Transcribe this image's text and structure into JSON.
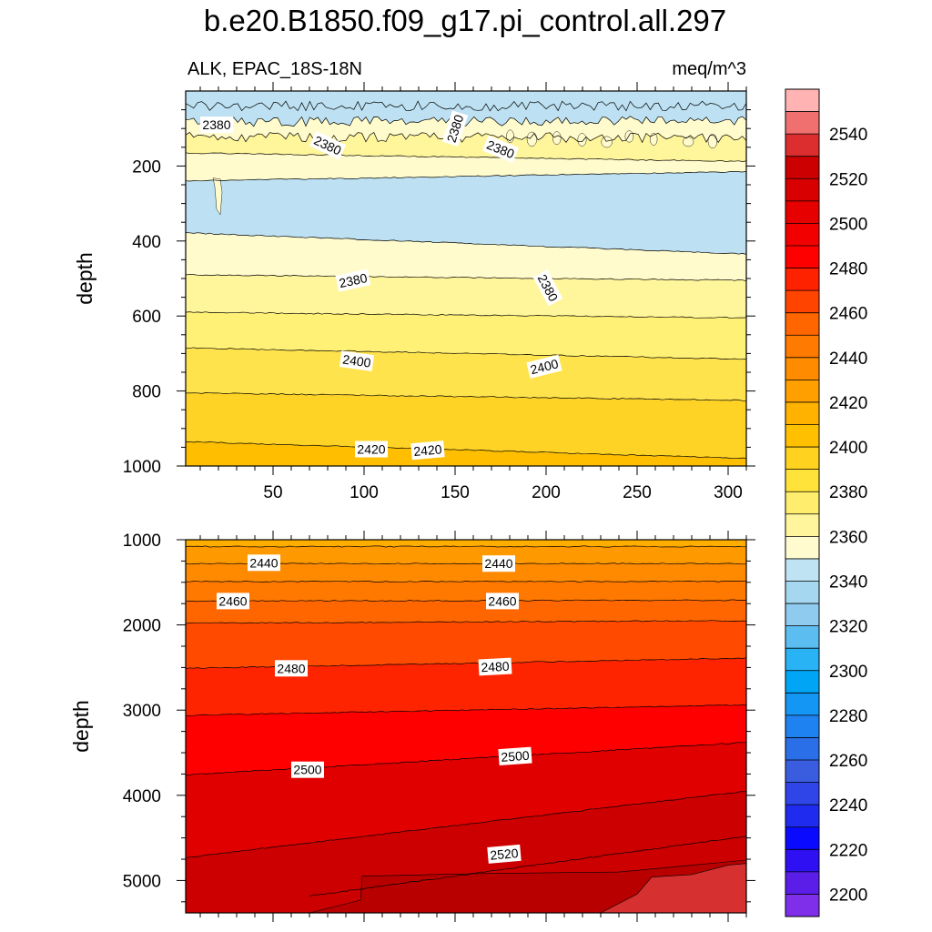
{
  "title": "b.e20.B1850.f09_g17.pi_control.all.297",
  "left_subtitle": "ALK, EPAC_18S-18N",
  "right_subtitle": "meq/m^3",
  "chart_data": [
    {
      "type": "heatmap",
      "panel": "upper",
      "ylabel": "depth",
      "xlabel": "",
      "xlim": [
        2,
        310
      ],
      "ylim": [
        1000,
        0
      ],
      "x_ticks": [
        50,
        100,
        150,
        200,
        250,
        300
      ],
      "y_ticks": [
        200,
        400,
        600,
        800,
        1000
      ],
      "contour_lines": [
        {
          "depth_left": 40,
          "depth_right": 40,
          "wavy": true
        },
        {
          "depth_left": 82,
          "depth_right": 78,
          "wavy": true
        },
        {
          "depth_left": 122,
          "depth_right": 125,
          "wavy": true
        },
        {
          "depth_left": 165,
          "depth_right": 188,
          "wavy": false
        },
        {
          "depth_left": 240,
          "depth_right": 215,
          "wavy": false
        },
        {
          "depth_left": 378,
          "depth_right": 435,
          "wavy": false
        },
        {
          "depth_left": 490,
          "depth_right": 505,
          "wavy": false
        },
        {
          "depth_left": 590,
          "depth_right": 605,
          "wavy": false
        },
        {
          "depth_left": 685,
          "depth_right": 715,
          "wavy": false
        },
        {
          "depth_left": 805,
          "depth_right": 825,
          "wavy": false
        },
        {
          "depth_left": 935,
          "depth_right": 980,
          "wavy": false
        }
      ],
      "bands": [
        {
          "color": "#bde1f2",
          "top": "edge",
          "bottom": 1
        },
        {
          "color": "#fffbcc",
          "top": 1,
          "bottom": 2
        },
        {
          "color": "#fff59a",
          "top": 2,
          "bottom": 3
        },
        {
          "color": "#fffbcc",
          "top": 3,
          "bottom": 4
        },
        {
          "color": "#bde1f2",
          "top": 4,
          "bottom": 5
        },
        {
          "color": "#fffbcc",
          "top": 5,
          "bottom": 6
        },
        {
          "color": "#fff59a",
          "top": 6,
          "bottom": 7
        },
        {
          "color": "#fff176",
          "top": 7,
          "bottom": 8
        },
        {
          "color": "#ffe34d",
          "top": 8,
          "bottom": 9
        },
        {
          "color": "#ffd326",
          "top": 9,
          "bottom": 10
        },
        {
          "color": "#ffbf00",
          "top": 10,
          "bottom": "edge"
        }
      ],
      "contour_labels": [
        {
          "text": "2380",
          "x": 19,
          "depth": 90,
          "angle": 0
        },
        {
          "text": "2380",
          "x": 80,
          "depth": 145,
          "angle": 25
        },
        {
          "text": "2380",
          "x": 150,
          "depth": 100,
          "angle": -72
        },
        {
          "text": "2380",
          "x": 175,
          "depth": 155,
          "angle": 22
        },
        {
          "text": "2380",
          "x": 94,
          "depth": 505,
          "angle": -12
        },
        {
          "text": "2380",
          "x": 201,
          "depth": 525,
          "angle": 62
        },
        {
          "text": "2400",
          "x": 96,
          "depth": 720,
          "angle": 8
        },
        {
          "text": "2400",
          "x": 199,
          "depth": 735,
          "angle": -14
        },
        {
          "text": "2420",
          "x": 104,
          "depth": 955,
          "angle": 0
        },
        {
          "text": "2420",
          "x": 135,
          "depth": 958,
          "angle": -5
        }
      ]
    },
    {
      "type": "heatmap",
      "panel": "lower",
      "ylabel": "depth",
      "xlabel": "",
      "xlim": [
        2,
        310
      ],
      "ylim": [
        5380,
        1000
      ],
      "y_ticks": [
        1000,
        2000,
        3000,
        4000,
        5000
      ],
      "contour_lines": [
        {
          "depth_left": 1080,
          "depth_right": 1080
        },
        {
          "depth_left": 1280,
          "depth_right": 1280
        },
        {
          "depth_left": 1490,
          "depth_right": 1490
        },
        {
          "depth_left": 1720,
          "depth_right": 1710
        },
        {
          "depth_left": 1980,
          "depth_right": 1950
        },
        {
          "depth_left": 2510,
          "depth_right": 2390
        },
        {
          "depth_left": 3060,
          "depth_right": 2940
        },
        {
          "depth_left": 3760,
          "depth_right": 3380
        },
        {
          "depth_left": 4730,
          "depth_right": 3950
        },
        {
          "depth_left": 5380,
          "depth_right": 4480,
          "start_x": 70
        }
      ],
      "bands": [
        {
          "color": "#ffae00",
          "top": "edge",
          "bottom": 0
        },
        {
          "color": "#ff9900",
          "top": 0,
          "bottom": 1
        },
        {
          "color": "#ff8a00",
          "top": 1,
          "bottom": 2
        },
        {
          "color": "#ff7800",
          "top": 2,
          "bottom": 3
        },
        {
          "color": "#ff6600",
          "top": 3,
          "bottom": 4
        },
        {
          "color": "#ff4a00",
          "top": 4,
          "bottom": 5
        },
        {
          "color": "#ff2400",
          "top": 5,
          "bottom": 6
        },
        {
          "color": "#ff0000",
          "top": 6,
          "bottom": 7
        },
        {
          "color": "#e00000",
          "top": 7,
          "bottom": 8
        },
        {
          "color": "#cc0000",
          "top": 8,
          "bottom": "edge"
        }
      ],
      "patches": [
        {
          "color": "#b80000",
          "points": [
            [
              70,
              5380
            ],
            [
              98,
              5230
            ],
            [
              99,
              4950
            ],
            [
              160,
              4920
            ],
            [
              240,
              4900
            ],
            [
              255,
              4870
            ],
            [
              310,
              4760
            ],
            [
              310,
              5380
            ]
          ]
        },
        {
          "color": "#d63030",
          "points": [
            [
              230,
              5380
            ],
            [
              250,
              5160
            ],
            [
              258,
              4960
            ],
            [
              280,
              4930
            ],
            [
              300,
              4820
            ],
            [
              310,
              4800
            ],
            [
              310,
              5380
            ]
          ]
        }
      ],
      "contour_labels": [
        {
          "text": "2440",
          "x": 45,
          "depth": 1270,
          "angle": 0
        },
        {
          "text": "2440",
          "x": 174,
          "depth": 1280,
          "angle": 0
        },
        {
          "text": "2460",
          "x": 28,
          "depth": 1720,
          "angle": 0
        },
        {
          "text": "2460",
          "x": 176,
          "depth": 1720,
          "angle": 0
        },
        {
          "text": "2480",
          "x": 60,
          "depth": 2510,
          "angle": 0
        },
        {
          "text": "2480",
          "x": 172,
          "depth": 2490,
          "angle": -3
        },
        {
          "text": "2500",
          "x": 69,
          "depth": 3700,
          "angle": 0
        },
        {
          "text": "2500",
          "x": 183,
          "depth": 3540,
          "angle": -4
        },
        {
          "text": "2520",
          "x": 177,
          "depth": 4690,
          "angle": -5
        }
      ]
    }
  ],
  "colorbar": {
    "orientation": "vertical",
    "labeled_values": [
      "2540",
      "2520",
      "2500",
      "2480",
      "2460",
      "2440",
      "2420",
      "2400",
      "2380",
      "2360",
      "2340",
      "2320",
      "2300",
      "2280",
      "2260",
      "2240",
      "2220",
      "2200"
    ],
    "colors_top_to_bottom": [
      "#ffb3b3",
      "#f07070",
      "#dc2e2e",
      "#cc0000",
      "#d80000",
      "#e60000",
      "#f20000",
      "#ff0000",
      "#ff2200",
      "#ff4400",
      "#ff6600",
      "#ff7a00",
      "#ff8c00",
      "#ff9f00",
      "#ffb200",
      "#ffc000",
      "#ffd21f",
      "#ffe23a",
      "#ffee6e",
      "#fff59c",
      "#fffbcf",
      "#bfe3f3",
      "#a5d7f0",
      "#8ecbee",
      "#5bbdf0",
      "#29b3f5",
      "#00a5f5",
      "#1496f5",
      "#1e82f0",
      "#2b6fe8",
      "#3a5de0",
      "#2f45e8",
      "#1f2cf0",
      "#0a0aff",
      "#2e10f2",
      "#5a1ee8",
      "#7f2eea"
    ]
  }
}
